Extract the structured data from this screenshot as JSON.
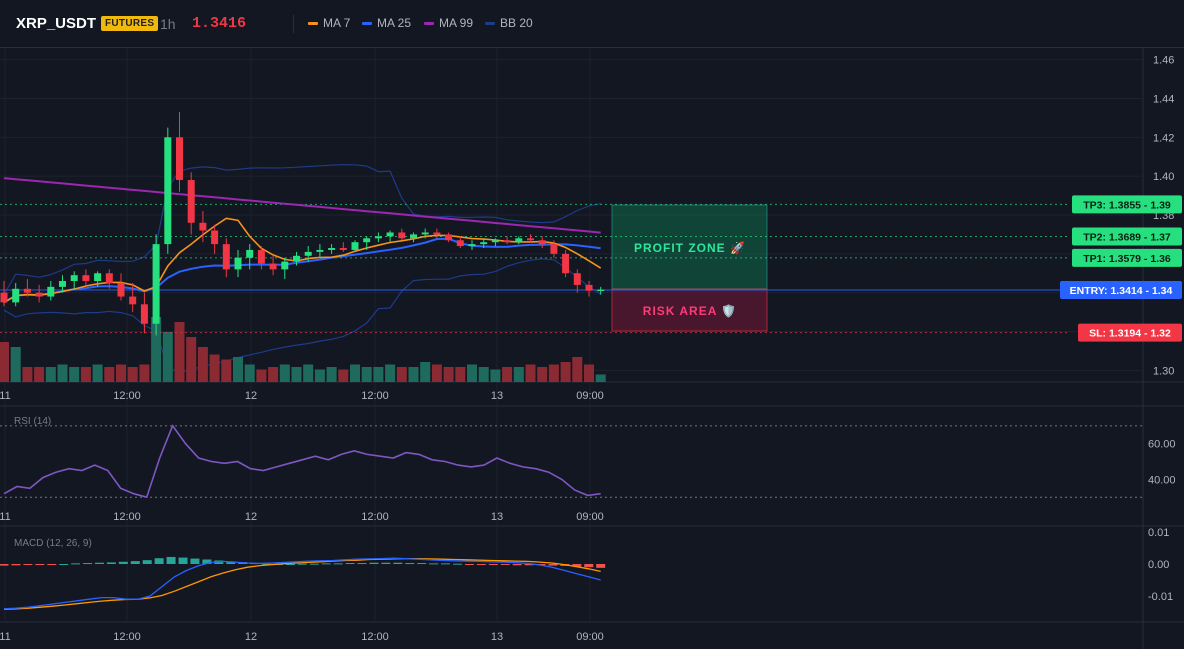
{
  "header": {
    "symbol": "XRP_USDT",
    "badge": "FUTURES",
    "timeframe": "1h",
    "last_price": "1.3416",
    "legend": [
      {
        "label": "MA 7",
        "color": "#f7931a"
      },
      {
        "label": "MA 25",
        "color": "#2962ff"
      },
      {
        "label": "MA 99",
        "color": "#9c27b0"
      },
      {
        "label": "BB 20",
        "color": "#1e3a8a"
      }
    ]
  },
  "colors": {
    "up": "#26a69a",
    "down": "#ef5350",
    "candle_up": "#26e07f",
    "candle_down": "#f23645",
    "rsi": "#7e57c2",
    "macd": "#2962ff",
    "signal": "#ff9800"
  },
  "time_axis": [
    "11",
    "12:00",
    "12",
    "12:00",
    "13",
    "09:00"
  ],
  "price_axis": [
    "1.46",
    "1.44",
    "1.42",
    "1.40",
    "1.38",
    "1.36",
    "1.34",
    "1.32",
    "1.30"
  ],
  "levels": [
    {
      "label": "TP3: 1.3855",
      "tick": "1.39",
      "price": 1.3855,
      "kind": "tp"
    },
    {
      "label": "TP2: 1.3689",
      "tick": "1.37",
      "price": 1.3689,
      "kind": "tp"
    },
    {
      "label": "TP1: 1.3579",
      "tick": "1.36",
      "price": 1.3579,
      "kind": "tp"
    },
    {
      "label": "ENTRY: 1.3414",
      "tick": "1.34",
      "price": 1.3414,
      "kind": "entry"
    },
    {
      "label": "SL: 1.3194",
      "tick": "1.32",
      "price": 1.3194,
      "kind": "sl"
    }
  ],
  "zones": {
    "profit": "PROFIT ZONE 🚀",
    "risk": "RISK AREA 🛡️"
  },
  "rsi_panel": {
    "label": "RSI (14)",
    "ticks": [
      "60.00",
      "40.00"
    ],
    "upper": 70,
    "lower": 30
  },
  "macd_panel": {
    "label": "MACD (12, 26, 9)",
    "ticks": [
      "0.01",
      "0.00",
      "-0.01"
    ]
  },
  "chart_data": {
    "type": "candlestick",
    "title": "XRP_USDT 1h",
    "ylim": [
      1.294,
      1.466
    ],
    "candles": [
      {
        "o": 1.34,
        "h": 1.346,
        "l": 1.333,
        "c": 1.335
      },
      {
        "o": 1.335,
        "h": 1.345,
        "l": 1.333,
        "c": 1.342
      },
      {
        "o": 1.342,
        "h": 1.347,
        "l": 1.338,
        "c": 1.34
      },
      {
        "o": 1.34,
        "h": 1.344,
        "l": 1.335,
        "c": 1.338
      },
      {
        "o": 1.338,
        "h": 1.346,
        "l": 1.336,
        "c": 1.343
      },
      {
        "o": 1.343,
        "h": 1.349,
        "l": 1.34,
        "c": 1.346
      },
      {
        "o": 1.346,
        "h": 1.351,
        "l": 1.342,
        "c": 1.349
      },
      {
        "o": 1.349,
        "h": 1.352,
        "l": 1.344,
        "c": 1.346
      },
      {
        "o": 1.346,
        "h": 1.351,
        "l": 1.343,
        "c": 1.35
      },
      {
        "o": 1.35,
        "h": 1.352,
        "l": 1.342,
        "c": 1.345
      },
      {
        "o": 1.345,
        "h": 1.35,
        "l": 1.336,
        "c": 1.338
      },
      {
        "o": 1.338,
        "h": 1.345,
        "l": 1.33,
        "c": 1.334
      },
      {
        "o": 1.334,
        "h": 1.34,
        "l": 1.319,
        "c": 1.324
      },
      {
        "o": 1.324,
        "h": 1.37,
        "l": 1.318,
        "c": 1.365
      },
      {
        "o": 1.365,
        "h": 1.425,
        "l": 1.36,
        "c": 1.42
      },
      {
        "o": 1.42,
        "h": 1.433,
        "l": 1.392,
        "c": 1.398
      },
      {
        "o": 1.398,
        "h": 1.402,
        "l": 1.37,
        "c": 1.376
      },
      {
        "o": 1.376,
        "h": 1.382,
        "l": 1.366,
        "c": 1.372
      },
      {
        "o": 1.372,
        "h": 1.375,
        "l": 1.36,
        "c": 1.365
      },
      {
        "o": 1.365,
        "h": 1.368,
        "l": 1.348,
        "c": 1.352
      },
      {
        "o": 1.352,
        "h": 1.362,
        "l": 1.348,
        "c": 1.358
      },
      {
        "o": 1.358,
        "h": 1.365,
        "l": 1.352,
        "c": 1.362
      },
      {
        "o": 1.362,
        "h": 1.364,
        "l": 1.352,
        "c": 1.355
      },
      {
        "o": 1.355,
        "h": 1.359,
        "l": 1.349,
        "c": 1.352
      },
      {
        "o": 1.352,
        "h": 1.358,
        "l": 1.347,
        "c": 1.356
      },
      {
        "o": 1.356,
        "h": 1.361,
        "l": 1.354,
        "c": 1.359
      },
      {
        "o": 1.359,
        "h": 1.364,
        "l": 1.356,
        "c": 1.361
      },
      {
        "o": 1.361,
        "h": 1.365,
        "l": 1.358,
        "c": 1.362
      },
      {
        "o": 1.362,
        "h": 1.365,
        "l": 1.36,
        "c": 1.363
      },
      {
        "o": 1.363,
        "h": 1.366,
        "l": 1.361,
        "c": 1.362
      },
      {
        "o": 1.362,
        "h": 1.367,
        "l": 1.361,
        "c": 1.366
      },
      {
        "o": 1.366,
        "h": 1.369,
        "l": 1.362,
        "c": 1.368
      },
      {
        "o": 1.368,
        "h": 1.371,
        "l": 1.366,
        "c": 1.369
      },
      {
        "o": 1.369,
        "h": 1.372,
        "l": 1.366,
        "c": 1.371
      },
      {
        "o": 1.371,
        "h": 1.373,
        "l": 1.367,
        "c": 1.368
      },
      {
        "o": 1.368,
        "h": 1.371,
        "l": 1.366,
        "c": 1.37
      },
      {
        "o": 1.37,
        "h": 1.373,
        "l": 1.368,
        "c": 1.371
      },
      {
        "o": 1.371,
        "h": 1.373,
        "l": 1.368,
        "c": 1.37
      },
      {
        "o": 1.37,
        "h": 1.371,
        "l": 1.366,
        "c": 1.367
      },
      {
        "o": 1.367,
        "h": 1.369,
        "l": 1.363,
        "c": 1.364
      },
      {
        "o": 1.364,
        "h": 1.367,
        "l": 1.362,
        "c": 1.365
      },
      {
        "o": 1.365,
        "h": 1.368,
        "l": 1.363,
        "c": 1.366
      },
      {
        "o": 1.366,
        "h": 1.368,
        "l": 1.364,
        "c": 1.367
      },
      {
        "o": 1.367,
        "h": 1.369,
        "l": 1.365,
        "c": 1.366
      },
      {
        "o": 1.366,
        "h": 1.369,
        "l": 1.365,
        "c": 1.368
      },
      {
        "o": 1.368,
        "h": 1.37,
        "l": 1.366,
        "c": 1.367
      },
      {
        "o": 1.367,
        "h": 1.369,
        "l": 1.363,
        "c": 1.365
      },
      {
        "o": 1.365,
        "h": 1.367,
        "l": 1.358,
        "c": 1.36
      },
      {
        "o": 1.36,
        "h": 1.362,
        "l": 1.348,
        "c": 1.35
      },
      {
        "o": 1.35,
        "h": 1.352,
        "l": 1.34,
        "c": 1.344
      },
      {
        "o": 1.344,
        "h": 1.346,
        "l": 1.338,
        "c": 1.341
      },
      {
        "o": 1.341,
        "h": 1.343,
        "l": 1.339,
        "c": 1.3416
      }
    ],
    "volume": [
      0.8,
      0.7,
      0.3,
      0.3,
      0.3,
      0.35,
      0.3,
      0.3,
      0.35,
      0.3,
      0.35,
      0.3,
      0.35,
      1.3,
      1.0,
      1.2,
      0.9,
      0.7,
      0.55,
      0.45,
      0.5,
      0.35,
      0.25,
      0.3,
      0.35,
      0.3,
      0.35,
      0.25,
      0.3,
      0.25,
      0.35,
      0.3,
      0.3,
      0.35,
      0.3,
      0.3,
      0.4,
      0.35,
      0.3,
      0.3,
      0.35,
      0.3,
      0.25,
      0.3,
      0.3,
      0.35,
      0.3,
      0.35,
      0.4,
      0.5,
      0.35,
      0.15
    ],
    "rsi": [
      32,
      36,
      35,
      41,
      44,
      46,
      45,
      48,
      45,
      35,
      32,
      30,
      52,
      70,
      60,
      52,
      50,
      49,
      50,
      46,
      45,
      47,
      49,
      51,
      53,
      51,
      54,
      56,
      54,
      53,
      52,
      55,
      54,
      51,
      50,
      48,
      47,
      48,
      52,
      49,
      47,
      46,
      44,
      40,
      34,
      31,
      32
    ],
    "macd_hist": [
      -0.0005,
      -0.0004,
      -0.0003,
      -0.0002,
      -0.0001,
      0.0,
      0.0002,
      0.0003,
      0.0004,
      0.0005,
      0.0007,
      0.0009,
      0.0012,
      0.0018,
      0.0022,
      0.002,
      0.0017,
      0.0014,
      0.0011,
      0.0008,
      0.0006,
      0.0003,
      0.0001,
      0.0,
      0.0,
      0.0001,
      0.0001,
      0.0002,
      0.0002,
      0.0003,
      0.0003,
      0.0004,
      0.0004,
      0.0004,
      0.0003,
      0.0003,
      0.0002,
      0.0002,
      0.0001,
      -0.0001,
      -0.0002,
      -0.0003,
      -0.0003,
      -0.0004,
      -0.0004,
      -0.0004,
      -0.0005,
      -0.0006,
      -0.0008,
      -0.001,
      -0.0012
    ],
    "macd": [
      -0.014,
      -0.0138,
      -0.0135,
      -0.013,
      -0.0125,
      -0.012,
      -0.0115,
      -0.011,
      -0.0105,
      -0.0105,
      -0.011,
      -0.011,
      -0.01,
      -0.007,
      -0.004,
      -0.002,
      -0.0005,
      0.0005,
      0.0008,
      0.0006,
      0.0003,
      0.0002,
      0.0003,
      0.0005,
      0.0007,
      0.0009,
      0.001,
      0.0011,
      0.0013,
      0.0015,
      0.0016,
      0.0017,
      0.0018,
      0.0017,
      0.0015,
      0.0013,
      0.0011,
      0.001,
      0.0009,
      0.0008,
      0.0007,
      0.0006,
      0.0004,
      0.0002,
      -0.0003,
      -0.001,
      -0.002,
      -0.003,
      -0.004,
      -0.005
    ],
    "signal": [
      -0.0142,
      -0.014,
      -0.0138,
      -0.0135,
      -0.0132,
      -0.0128,
      -0.0124,
      -0.012,
      -0.0116,
      -0.0113,
      -0.0111,
      -0.011,
      -0.0106,
      -0.0098,
      -0.0085,
      -0.007,
      -0.0055,
      -0.004,
      -0.0028,
      -0.0018,
      -0.001,
      -0.0005,
      -0.0002,
      0.0001,
      0.0003,
      0.0005,
      0.0007,
      0.0009,
      0.0011,
      0.0012,
      0.0014,
      0.0015,
      0.0016,
      0.0017,
      0.0017,
      0.0016,
      0.0015,
      0.0014,
      0.0013,
      0.0012,
      0.0011,
      0.001,
      0.0009,
      0.0008,
      0.0006,
      0.0003,
      -0.0002,
      -0.0008,
      -0.0015,
      -0.0023
    ]
  }
}
